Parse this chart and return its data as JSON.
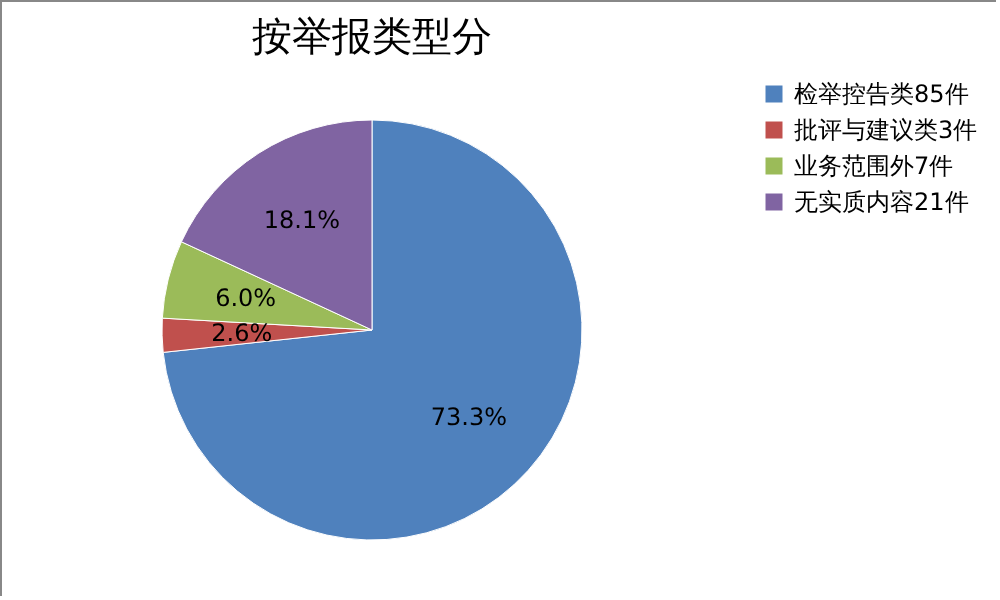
{
  "chart_data": {
    "type": "pie",
    "title": "按举报类型分",
    "categories": [
      "检举控告类85件",
      "批评与建议类3件",
      "业务范围外7件",
      "无实质内容21件"
    ],
    "values": [
      73.3,
      2.6,
      6.0,
      18.1
    ],
    "colors": [
      "#4f81bd",
      "#c0504d",
      "#9bbb59",
      "#8064a2"
    ],
    "value_labels": [
      "73.3%",
      "2.6%",
      "6.0%",
      "18.1%"
    ],
    "legend": "right"
  }
}
